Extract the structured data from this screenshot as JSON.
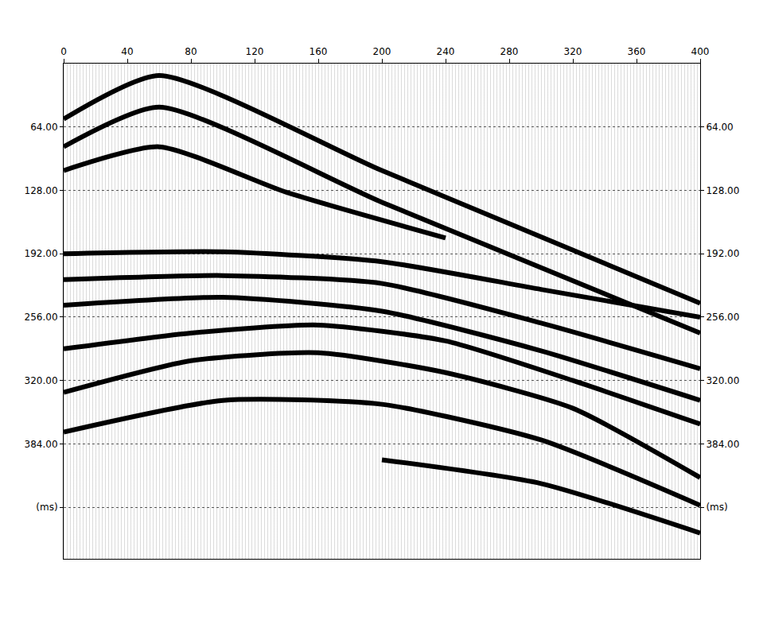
{
  "chart_data": {
    "type": "line",
    "xlim": [
      0,
      400
    ],
    "xticks": [
      0,
      40,
      80,
      120,
      160,
      200,
      240,
      280,
      320,
      360,
      400
    ],
    "ylim": [
      0,
      500
    ],
    "yticks": [
      {
        "value": 64,
        "label": "64.00"
      },
      {
        "value": 128,
        "label": "128.00"
      },
      {
        "value": 192,
        "label": "192.00"
      },
      {
        "value": 256,
        "label": "256.00"
      },
      {
        "value": 320,
        "label": "320.00"
      },
      {
        "value": 384,
        "label": "384.00"
      },
      {
        "value": 448,
        "label": "(ms)"
      }
    ],
    "grid": true,
    "series": [
      {
        "color": "#000000",
        "x": [
          0,
          60,
          200,
          400
        ],
        "values": [
          56,
          12,
          108,
          242
        ]
      },
      {
        "color": "#000000",
        "x": [
          0,
          60,
          200,
          400
        ],
        "values": [
          84,
          44,
          140,
          272
        ]
      },
      {
        "color": "#000000",
        "x": [
          0,
          60,
          140,
          240
        ],
        "values": [
          108,
          84,
          130,
          176
        ]
      },
      {
        "color": "#000000",
        "x": [
          0,
          100,
          200,
          300,
          400
        ],
        "values": [
          192,
          190,
          200,
          228,
          256
        ]
      },
      {
        "color": "#000000",
        "x": [
          0,
          100,
          200,
          300,
          400
        ],
        "values": [
          218,
          214,
          222,
          262,
          308
        ]
      },
      {
        "color": "#000000",
        "x": [
          0,
          100,
          200,
          300,
          400
        ],
        "values": [
          244,
          236,
          250,
          290,
          340
        ]
      },
      {
        "color": "#000000",
        "x": [
          0,
          80,
          160,
          240,
          320,
          400
        ],
        "values": [
          288,
          272,
          264,
          280,
          320,
          364
        ]
      },
      {
        "color": "#000000",
        "x": [
          0,
          80,
          160,
          240,
          320,
          400
        ],
        "values": [
          332,
          300,
          292,
          312,
          348,
          418
        ]
      },
      {
        "color": "#000000",
        "x": [
          0,
          100,
          200,
          300,
          400
        ],
        "values": [
          372,
          340,
          344,
          380,
          446
        ]
      },
      {
        "color": "#000000",
        "x": [
          200,
          300,
          400
        ],
        "values": [
          400,
          424,
          474
        ]
      }
    ]
  }
}
